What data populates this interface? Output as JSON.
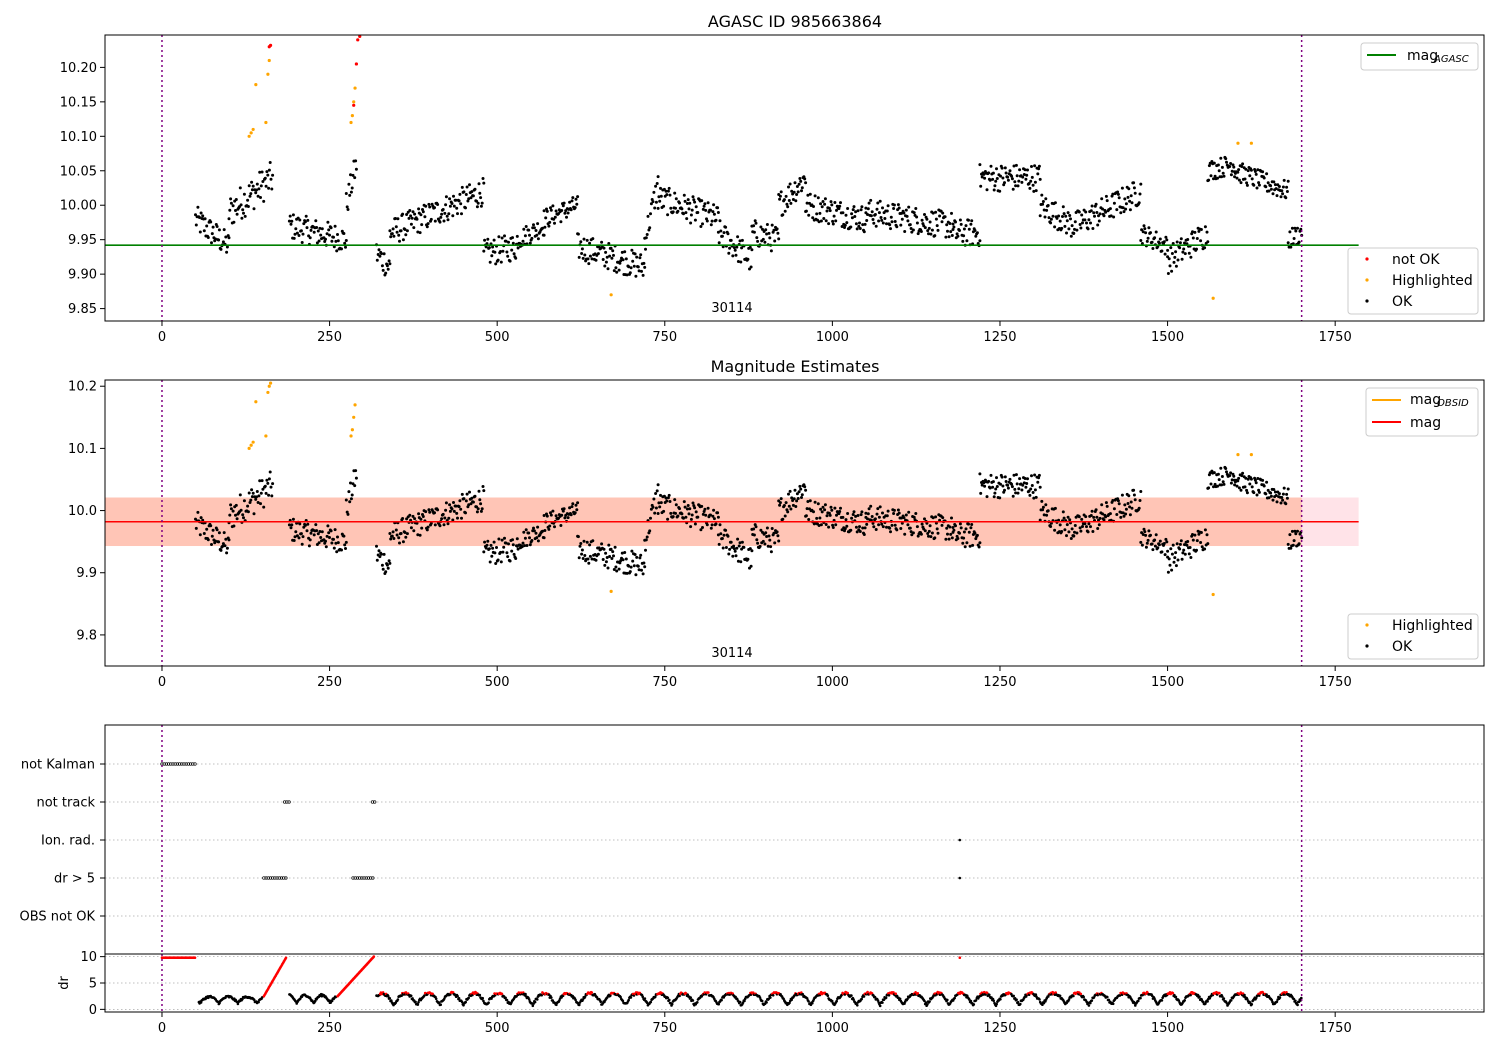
{
  "chart_data": [
    {
      "type": "scatter",
      "title": "AGASC ID 985663864",
      "xlim": [
        -85,
        1972
      ],
      "ylim": [
        9.832,
        10.247
      ],
      "xticks": [
        0,
        250,
        500,
        750,
        1000,
        1250,
        1500,
        1750
      ],
      "yticks": [
        9.85,
        9.9,
        9.95,
        10.0,
        10.05,
        10.1,
        10.15,
        10.2
      ],
      "ytick_labels": [
        "9.85",
        "9.90",
        "9.95",
        "10.00",
        "10.05",
        "10.10",
        "10.15",
        "10.20"
      ],
      "obs_bounds": [
        0,
        1700
      ],
      "obsid_label": "30114",
      "obsid_label_x": 850,
      "mag_agasc": 9.942,
      "mag_agasc_xrange": [
        -85,
        1785
      ],
      "colors": {
        "mag_agasc": "#008000",
        "not_ok": "#ff0000",
        "highlighted": "#ffa500",
        "ok": "#000000",
        "bounds": "#800080"
      },
      "legend_top": [
        {
          "label": "mag",
          "sub": "AGASC",
          "color": "#008000"
        }
      ],
      "legend_bottom": [
        {
          "label": "not OK",
          "color": "#ff0000"
        },
        {
          "label": "Highlighted",
          "color": "#ffa500"
        },
        {
          "label": "OK",
          "color": "#000000"
        }
      ],
      "highlighted_points": [
        [
          130,
          10.1
        ],
        [
          133,
          10.105
        ],
        [
          136,
          10.11
        ],
        [
          140,
          10.175
        ],
        [
          155,
          10.12
        ],
        [
          158,
          10.19
        ],
        [
          160,
          10.21
        ],
        [
          282,
          10.12
        ],
        [
          284,
          10.13
        ],
        [
          286,
          10.15
        ],
        [
          288,
          10.17
        ],
        [
          670,
          9.87
        ],
        [
          1568,
          9.865
        ],
        [
          1605,
          10.09
        ],
        [
          1625,
          10.09
        ]
      ],
      "not_ok_points": [
        [
          160,
          10.23
        ],
        [
          162,
          10.232
        ],
        [
          286,
          10.145
        ],
        [
          290,
          10.205
        ],
        [
          292,
          10.24
        ],
        [
          295,
          10.245
        ]
      ]
    },
    {
      "type": "scatter",
      "title": "Magnitude Estimates",
      "xlim": [
        -85,
        1972
      ],
      "ylim": [
        9.75,
        10.21
      ],
      "xticks": [
        0,
        250,
        500,
        750,
        1000,
        1250,
        1500,
        1750
      ],
      "yticks": [
        9.8,
        9.9,
        10.0,
        10.1,
        10.2
      ],
      "ytick_labels": [
        "9.8",
        "9.9",
        "10.0",
        "10.1",
        "10.2"
      ],
      "obs_bounds": [
        0,
        1700
      ],
      "obsid_label": "30114",
      "obsid_label_x": 850,
      "mag": 9.982,
      "mag_band": [
        9.943,
        10.021
      ],
      "mag_xrange": [
        -85,
        1785
      ],
      "colors": {
        "mag_obsid": "#ffa500",
        "mag": "#ff0000",
        "band": "#ffc0cb",
        "band_obsid": "#ffa07a"
      },
      "legend_top": [
        {
          "label": "mag",
          "sub": "OBSID",
          "color": "#ffa500"
        },
        {
          "label": "mag",
          "sub": "",
          "color": "#ff0000"
        }
      ],
      "legend_bottom": [
        {
          "label": "Highlighted",
          "color": "#ffa500"
        },
        {
          "label": "OK",
          "color": "#000000"
        }
      ],
      "highlighted_points": [
        [
          130,
          10.1
        ],
        [
          133,
          10.105
        ],
        [
          136,
          10.11
        ],
        [
          140,
          10.175
        ],
        [
          155,
          10.12
        ],
        [
          158,
          10.19
        ],
        [
          160,
          10.2
        ],
        [
          162,
          10.205
        ],
        [
          282,
          10.12
        ],
        [
          284,
          10.13
        ],
        [
          286,
          10.15
        ],
        [
          288,
          10.17
        ],
        [
          670,
          9.87
        ],
        [
          1568,
          9.865
        ],
        [
          1605,
          10.09
        ],
        [
          1625,
          10.09
        ]
      ]
    },
    {
      "type": "scatter",
      "xlim": [
        -85,
        1972
      ],
      "xticks": [
        0,
        250,
        500,
        750,
        1000,
        1250,
        1500,
        1750
      ],
      "categories": [
        "not Kalman",
        "not track",
        "Ion. rad.",
        "dr > 5",
        "OBS not OK"
      ],
      "flag_segments": [
        {
          "category": "not Kalman",
          "x": [
            0,
            50
          ]
        },
        {
          "category": "not track",
          "x": [
            183,
            190
          ]
        },
        {
          "category": "not track",
          "x": [
            314,
            318
          ]
        },
        {
          "category": "Ion. rad.",
          "x": [
            1190,
            1190
          ]
        },
        {
          "category": "dr > 5",
          "x": [
            152,
            185
          ]
        },
        {
          "category": "dr > 5",
          "x": [
            285,
            315
          ]
        },
        {
          "category": "dr > 5",
          "x": [
            1190,
            1190
          ]
        }
      ],
      "obs_bounds": [
        0,
        1700
      ]
    },
    {
      "type": "scatter",
      "ylabel": "dr",
      "xlim": [
        -85,
        1972
      ],
      "ylim": [
        -0.5,
        10.5
      ],
      "yticks": [
        0,
        5,
        10
      ],
      "ytick_labels": [
        "0",
        "5",
        "10"
      ],
      "xticks": [
        0,
        250,
        500,
        750,
        1000,
        1250,
        1500,
        1750
      ],
      "xtick_labels": [
        "0",
        "250",
        "500",
        "750",
        "1000",
        "1250",
        "1500",
        "1750"
      ],
      "obs_bounds": [
        0,
        1700
      ]
    }
  ]
}
